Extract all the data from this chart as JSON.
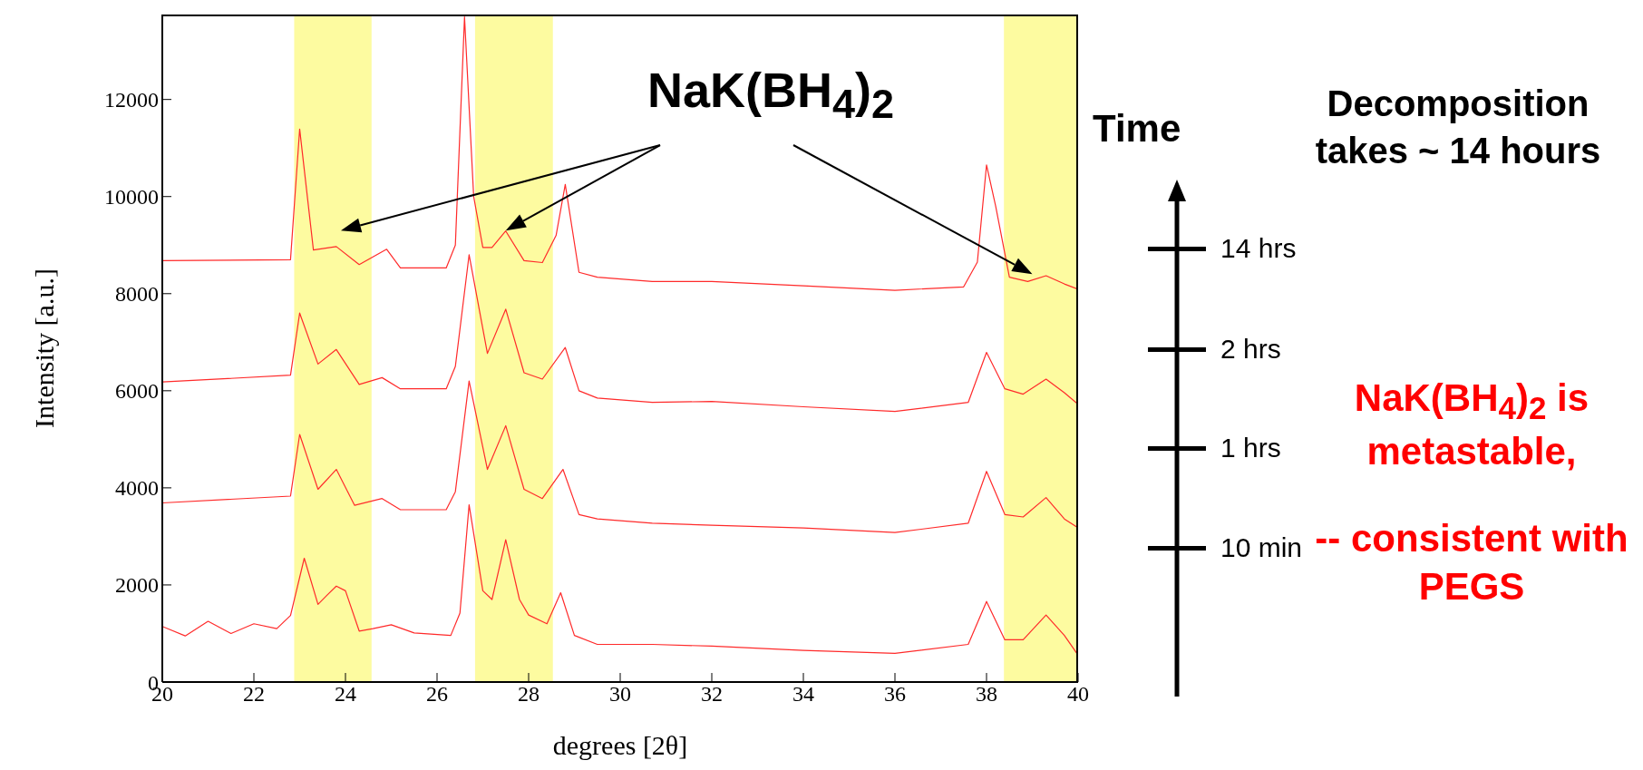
{
  "chart_data": {
    "type": "line",
    "xlabel": "degrees [2θ]",
    "ylabel": "Intensity [a.u.]",
    "legend_title": "Time",
    "legend": "right",
    "xlim": [
      20,
      40
    ],
    "xticks": [
      20,
      22,
      24,
      26,
      28,
      30,
      32,
      34,
      36,
      38,
      40
    ],
    "ylim": [
      0,
      13750
    ],
    "yticks": [
      0,
      2000,
      4000,
      6000,
      8000,
      10000,
      12000
    ],
    "bands": [
      {
        "axis": "x",
        "from": 22.88,
        "to": 24.57,
        "color": "#fdfba0"
      },
      {
        "axis": "x",
        "from": 26.83,
        "to": 28.53,
        "color": "#fdfba0"
      },
      {
        "axis": "x",
        "from": 38.38,
        "to": 40,
        "color": "#fdfba0"
      }
    ],
    "series": [
      {
        "name": "14 hrs",
        "color": "#ff2a2a",
        "x": [
          20,
          22.8,
          23.0,
          23.3,
          23.8,
          24.3,
          24.9,
          25.2,
          26.2,
          26.4,
          26.6,
          26.8,
          27.0,
          27.2,
          27.5,
          27.9,
          28.3,
          28.6,
          28.8,
          29.1,
          29.5,
          30.7,
          32,
          34,
          36,
          37.5,
          37.8,
          38.0,
          38.2,
          38.5,
          38.9,
          39.3,
          39.7,
          40
        ],
        "values": [
          8680,
          8700,
          11390,
          8900,
          8970,
          8600,
          8915,
          8530,
          8530,
          9000,
          13700,
          10000,
          8950,
          8950,
          9290,
          8680,
          8640,
          9200,
          10250,
          8440,
          8340,
          8250,
          8250,
          8160,
          8070,
          8140,
          8650,
          10650,
          9800,
          8340,
          8250,
          8370,
          8200,
          8090
        ]
      },
      {
        "name": "2 hrs",
        "color": "#ff2a2a",
        "x": [
          20,
          22.8,
          23.0,
          23.4,
          23.8,
          24.3,
          24.8,
          25.2,
          26.2,
          26.4,
          26.7,
          27.1,
          27.5,
          27.9,
          28.3,
          28.8,
          29.1,
          29.5,
          30.7,
          32,
          34,
          36,
          37.6,
          38.0,
          38.4,
          38.8,
          39.3,
          39.7,
          40
        ],
        "values": [
          6180,
          6320,
          7600,
          6550,
          6850,
          6130,
          6270,
          6040,
          6040,
          6500,
          8800,
          6770,
          7680,
          6370,
          6240,
          6890,
          6000,
          5850,
          5760,
          5780,
          5670,
          5575,
          5760,
          6790,
          6040,
          5930,
          6240,
          5960,
          5720
        ]
      },
      {
        "name": "1 hrs",
        "color": "#ff2a2a",
        "x": [
          20,
          22.8,
          23.0,
          23.4,
          23.8,
          24.2,
          24.8,
          25.2,
          26.2,
          26.4,
          26.7,
          27.1,
          27.5,
          27.9,
          28.3,
          28.75,
          29.1,
          29.5,
          30.7,
          32,
          34,
          36,
          37.6,
          38.0,
          38.4,
          38.8,
          39.3,
          39.7,
          40
        ],
        "values": [
          3690,
          3830,
          5100,
          3970,
          4380,
          3640,
          3780,
          3550,
          3550,
          3920,
          6200,
          4380,
          5280,
          3970,
          3780,
          4380,
          3450,
          3360,
          3270,
          3230,
          3175,
          3080,
          3270,
          4340,
          3450,
          3400,
          3800,
          3360,
          3175
        ]
      },
      {
        "name": "10 min",
        "color": "#ff2a2a",
        "x": [
          20,
          20.5,
          21,
          21.5,
          22,
          22.5,
          22.8,
          23.1,
          23.4,
          23.6,
          23.8,
          24.0,
          24.3,
          24.6,
          25.0,
          25.5,
          26.3,
          26.5,
          26.7,
          27.0,
          27.2,
          27.5,
          27.8,
          28.0,
          28.4,
          28.7,
          29.0,
          29.5,
          30.7,
          32,
          34,
          36,
          37.6,
          38.0,
          38.4,
          38.8,
          39.3,
          39.7,
          40
        ],
        "values": [
          1145,
          950,
          1250,
          1000,
          1200,
          1100,
          1370,
          2550,
          1600,
          1790,
          1975,
          1880,
          1050,
          1100,
          1180,
          1010,
          960,
          1420,
          3650,
          1880,
          1700,
          2930,
          1700,
          1380,
          1200,
          1840,
          960,
          775,
          775,
          740,
          650,
          590,
          775,
          1660,
          870,
          870,
          1380,
          960,
          555
        ]
      }
    ],
    "annotations": [
      "NaK(BH$_{4}$)$_{2}$",
      "Decomposition takes ~ 14 hours",
      "NaK(BH$_{4}$)$_{2}$ is metastable,",
      "-- consistent with PEGS"
    ]
  }
}
